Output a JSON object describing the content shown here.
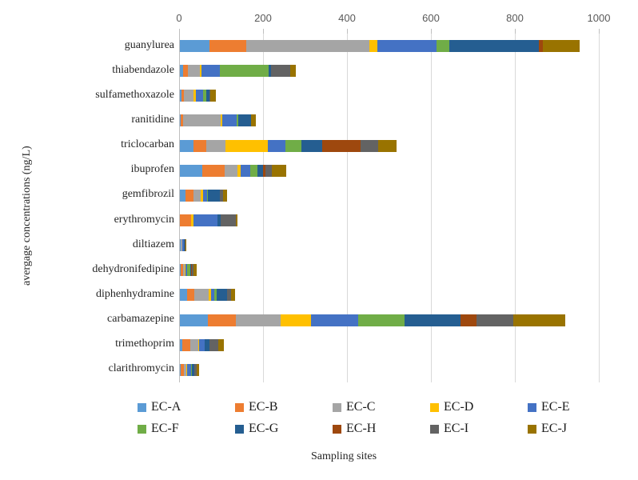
{
  "figure": {
    "y_axis_title": "avergage concentrations (ng/L)",
    "x_axis_title": "Sampling sites"
  },
  "chart_data": {
    "type": "bar",
    "orientation": "horizontal",
    "stacked": true,
    "title": "",
    "xlabel": "Sampling sites",
    "ylabel": "avergage concentrations (ng/L)",
    "xlim": [
      0,
      1000
    ],
    "xticks": [
      0,
      200,
      400,
      600,
      800,
      1000
    ],
    "grid": true,
    "legend_position": "bottom",
    "gridline_color": "#D9D9D9",
    "axis_line_color": "#BFBFBF",
    "tick_label_color": "#595959",
    "categories": [
      "guanylurea",
      "thiabendazole",
      "sulfamethoxazole",
      "ranitidine",
      "triclocarban",
      "ibuprofen",
      "gemfibrozil",
      "erythromycin",
      "diltiazem",
      "dehydronifedipine",
      "diphenhydramine",
      "carbamazepine",
      "trimethoprim",
      "clarithromycin"
    ],
    "series": [
      {
        "name": "EC-A",
        "color": "#5B9BD5",
        "values": [
          70,
          7,
          3,
          2,
          33,
          54,
          13,
          0,
          1,
          2,
          17,
          67,
          5,
          1
        ]
      },
      {
        "name": "EC-B",
        "color": "#ED7D31",
        "values": [
          88,
          12,
          7,
          5,
          30,
          53,
          19,
          27,
          1,
          5,
          18,
          66,
          20,
          8
        ]
      },
      {
        "name": "EC-C",
        "color": "#A5A5A5",
        "values": [
          294,
          28,
          22,
          90,
          46,
          30,
          18,
          0,
          3,
          5,
          33,
          107,
          18,
          7
        ]
      },
      {
        "name": "EC-D",
        "color": "#FFC000",
        "values": [
          18,
          5,
          6,
          4,
          101,
          8,
          5,
          6,
          1,
          2,
          6,
          73,
          2,
          1
        ]
      },
      {
        "name": "EC-E",
        "color": "#4472C4",
        "values": [
          142,
          44,
          18,
          35,
          42,
          22,
          9,
          56,
          3,
          3,
          8,
          111,
          15,
          9
        ]
      },
      {
        "name": "EC-F",
        "color": "#70AD47",
        "values": [
          30,
          115,
          6,
          4,
          37,
          18,
          3,
          0,
          1,
          8,
          6,
          111,
          0,
          2
        ]
      },
      {
        "name": "EC-G",
        "color": "#255E91",
        "values": [
          213,
          6,
          8,
          29,
          50,
          13,
          28,
          8,
          2,
          2,
          25,
          133,
          10,
          6
        ]
      },
      {
        "name": "EC-H",
        "color": "#9E480E",
        "values": [
          9,
          0,
          0,
          0,
          91,
          6,
          0,
          0,
          0,
          2,
          0,
          38,
          0,
          0
        ]
      },
      {
        "name": "EC-I",
        "color": "#636363",
        "values": [
          0,
          46,
          3,
          0,
          43,
          15,
          8,
          36,
          1,
          3,
          9,
          89,
          21,
          7
        ]
      },
      {
        "name": "EC-J",
        "color": "#997300",
        "values": [
          88,
          13,
          13,
          12,
          43,
          35,
          10,
          4,
          2,
          8,
          9,
          124,
          13,
          5
        ]
      }
    ]
  }
}
